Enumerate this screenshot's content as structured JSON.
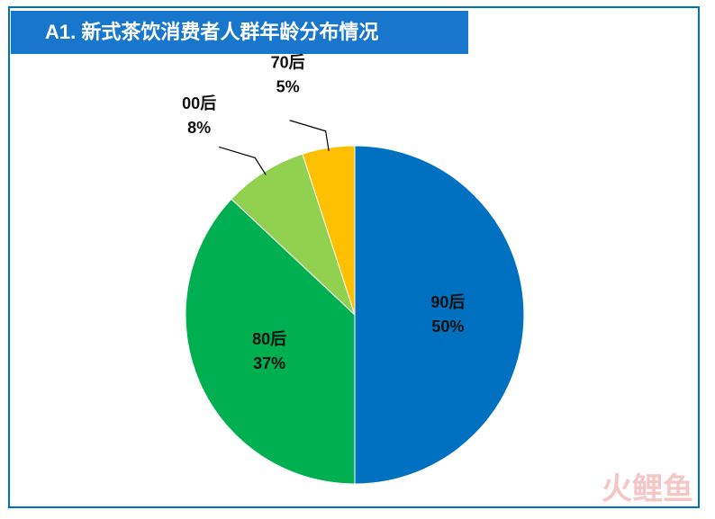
{
  "chart_data": {
    "type": "pie",
    "title": "A1. 新式茶饮消费者人群年龄分布情况",
    "categories": [
      "90后",
      "80后",
      "00后",
      "70后"
    ],
    "values": [
      50,
      37,
      8,
      5
    ],
    "value_labels": [
      "50%",
      "37%",
      "8%",
      "5%"
    ],
    "colors": [
      "#0070C0",
      "#00B050",
      "#92D050",
      "#FFC000"
    ],
    "watermark": "火鲤鱼"
  }
}
